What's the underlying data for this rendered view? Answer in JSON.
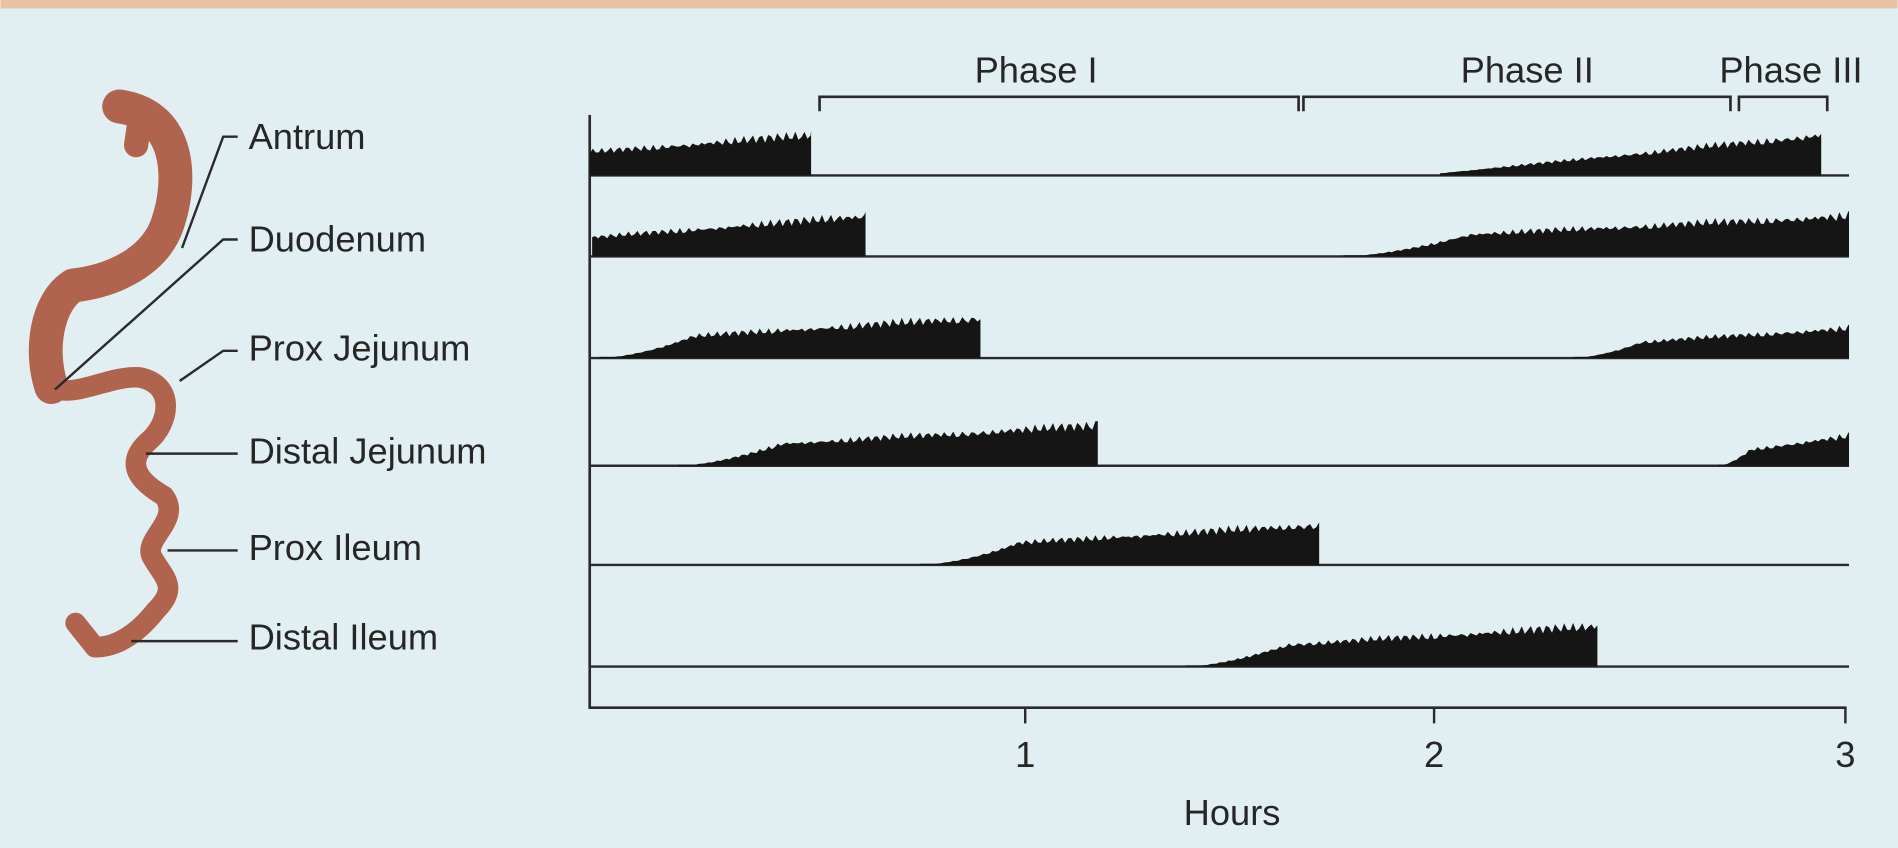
{
  "labels": [
    "Antrum",
    "Duodenum",
    "Prox Jejunum",
    "Distal Jejunum",
    "Prox Ileum",
    "Distal Ileum"
  ],
  "phases": [
    "Phase I",
    "Phase II",
    "Phase III"
  ],
  "x_axis": {
    "label": "Hours",
    "ticks": [
      1,
      2,
      3
    ]
  }
}
